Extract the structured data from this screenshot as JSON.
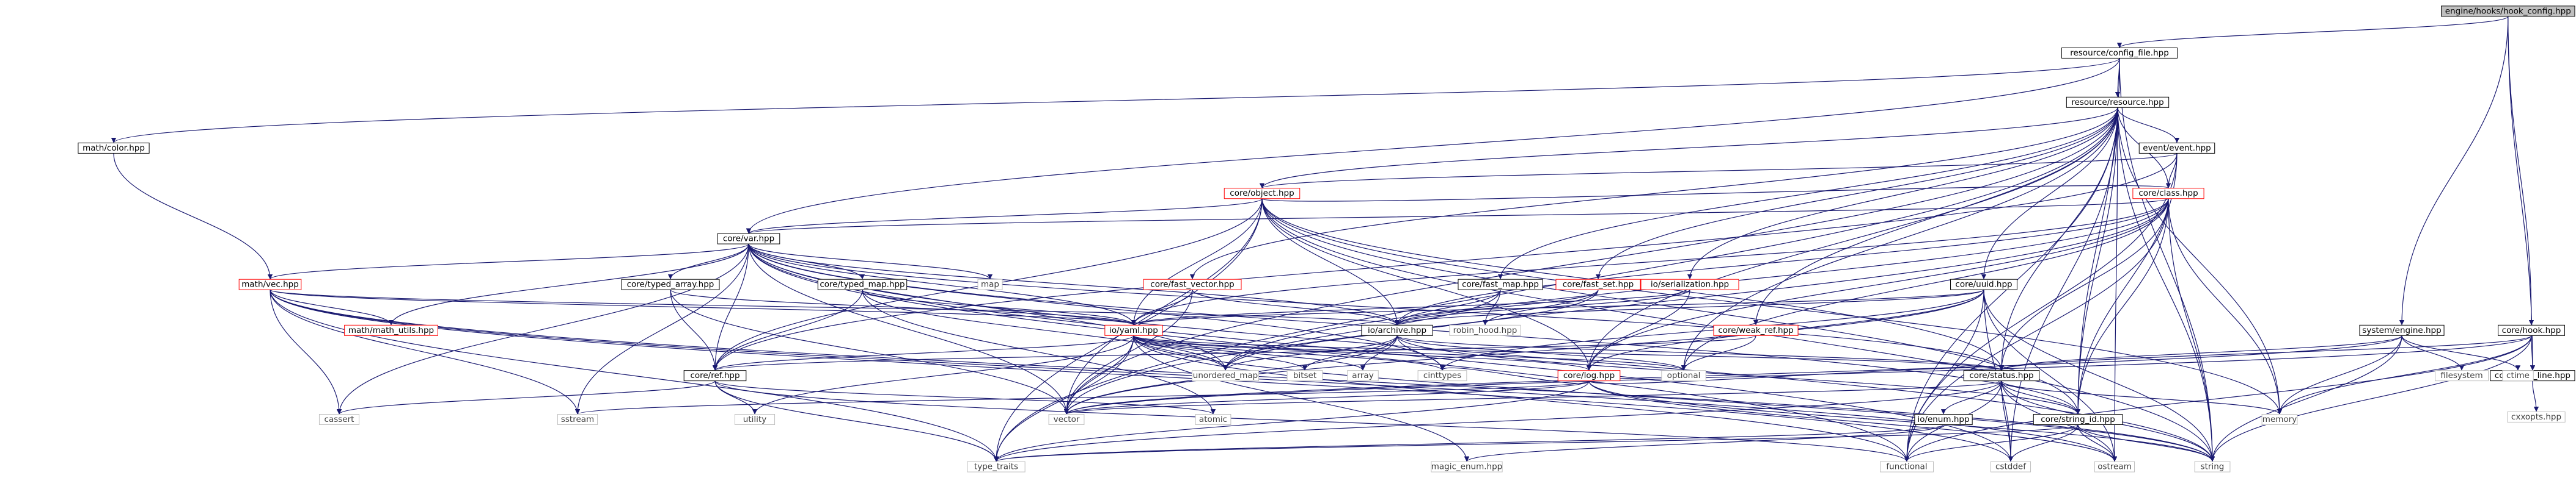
{
  "diagram": {
    "title": "",
    "colors": {
      "edge": "#191970",
      "root_fill": "#bfbfbf",
      "node_border": "#000000",
      "red_node_border": "#ff0000",
      "external_border": "#bfbfbf",
      "external_text": "#404040"
    },
    "nodes": [
      {
        "id": "hook_config",
        "label": "engine/hooks/hook_config.hpp",
        "kind": "root"
      },
      {
        "id": "config_file",
        "label": "resource/config_file.hpp",
        "kind": "doc"
      },
      {
        "id": "math_color",
        "label": "math/color.hpp",
        "kind": "doc"
      },
      {
        "id": "resource",
        "label": "resource/resource.hpp",
        "kind": "doc"
      },
      {
        "id": "event",
        "label": "event/event.hpp",
        "kind": "doc"
      },
      {
        "id": "object",
        "label": "core/object.hpp",
        "kind": "red"
      },
      {
        "id": "class",
        "label": "core/class.hpp",
        "kind": "red"
      },
      {
        "id": "var",
        "label": "core/var.hpp",
        "kind": "doc"
      },
      {
        "id": "math_vec",
        "label": "math/vec.hpp",
        "kind": "red"
      },
      {
        "id": "typed_array",
        "label": "core/typed_array.hpp",
        "kind": "doc"
      },
      {
        "id": "typed_map",
        "label": "core/typed_map.hpp",
        "kind": "doc"
      },
      {
        "id": "fast_vector",
        "label": "core/fast_vector.hpp",
        "kind": "red"
      },
      {
        "id": "fast_map",
        "label": "core/fast_map.hpp",
        "kind": "doc"
      },
      {
        "id": "fast_set",
        "label": "core/fast_set.hpp",
        "kind": "red"
      },
      {
        "id": "serialization",
        "label": "io/serialization.hpp",
        "kind": "red"
      },
      {
        "id": "uuid",
        "label": "core/uuid.hpp",
        "kind": "doc"
      },
      {
        "id": "weak_ref",
        "label": "core/weak_ref.hpp",
        "kind": "red"
      },
      {
        "id": "math_utils",
        "label": "math/math_utils.hpp",
        "kind": "red"
      },
      {
        "id": "yaml",
        "label": "io/yaml.hpp",
        "kind": "red"
      },
      {
        "id": "archive",
        "label": "io/archive.hpp",
        "kind": "doc"
      },
      {
        "id": "map",
        "label": "map",
        "kind": "ext"
      },
      {
        "id": "robin_hood",
        "label": "robin_hood.hpp",
        "kind": "ext"
      },
      {
        "id": "log",
        "label": "core/log.hpp",
        "kind": "red"
      },
      {
        "id": "ref",
        "label": "core/ref.hpp",
        "kind": "doc"
      },
      {
        "id": "status",
        "label": "core/status.hpp",
        "kind": "doc"
      },
      {
        "id": "system_engine",
        "label": "system/engine.hpp",
        "kind": "doc"
      },
      {
        "id": "hook",
        "label": "core/hook.hpp",
        "kind": "doc"
      },
      {
        "id": "cmd_line",
        "label": "core/cmd_line.hpp",
        "kind": "doc"
      },
      {
        "id": "cxxopts",
        "label": "cxxopts.hpp",
        "kind": "ext"
      },
      {
        "id": "unordered_map",
        "label": "unordered_map",
        "kind": "ext"
      },
      {
        "id": "bitset",
        "label": "bitset",
        "kind": "ext"
      },
      {
        "id": "array",
        "label": "array",
        "kind": "ext"
      },
      {
        "id": "cinttypes",
        "label": "cinttypes",
        "kind": "ext"
      },
      {
        "id": "optional",
        "label": "optional",
        "kind": "ext"
      },
      {
        "id": "filesystem",
        "label": "filesystem",
        "kind": "ext"
      },
      {
        "id": "ctime",
        "label": "ctime",
        "kind": "ext"
      },
      {
        "id": "cassert",
        "label": "cassert",
        "kind": "ext"
      },
      {
        "id": "sstream",
        "label": "sstream",
        "kind": "ext"
      },
      {
        "id": "utility",
        "label": "utility",
        "kind": "ext"
      },
      {
        "id": "vector",
        "label": "vector",
        "kind": "ext"
      },
      {
        "id": "atomic",
        "label": "atomic",
        "kind": "ext"
      },
      {
        "id": "enum",
        "label": "io/enum.hpp",
        "kind": "doc"
      },
      {
        "id": "string_id",
        "label": "core/string_id.hpp",
        "kind": "doc"
      },
      {
        "id": "memory",
        "label": "memory",
        "kind": "ext"
      },
      {
        "id": "type_traits",
        "label": "type_traits",
        "kind": "ext"
      },
      {
        "id": "magic_enum",
        "label": "magic_enum.hpp",
        "kind": "ext"
      },
      {
        "id": "functional",
        "label": "functional",
        "kind": "ext"
      },
      {
        "id": "cstddef",
        "label": "cstddef",
        "kind": "ext"
      },
      {
        "id": "ostream",
        "label": "ostream",
        "kind": "ext"
      },
      {
        "id": "string",
        "label": "string",
        "kind": "ext"
      }
    ],
    "edges": [
      [
        "hook_config",
        "config_file"
      ],
      [
        "hook_config",
        "system_engine"
      ],
      [
        "hook_config",
        "hook"
      ],
      [
        "hook_config",
        "cmd_line"
      ],
      [
        "config_file",
        "math_color"
      ],
      [
        "config_file",
        "resource"
      ],
      [
        "config_file",
        "var"
      ],
      [
        "config_file",
        "string_id"
      ],
      [
        "config_file",
        "string"
      ],
      [
        "math_color",
        "math_vec"
      ],
      [
        "resource",
        "event"
      ],
      [
        "resource",
        "object"
      ],
      [
        "resource",
        "class"
      ],
      [
        "resource",
        "fast_vector"
      ],
      [
        "resource",
        "fast_map"
      ],
      [
        "resource",
        "fast_set"
      ],
      [
        "resource",
        "serialization"
      ],
      [
        "resource",
        "uuid"
      ],
      [
        "resource",
        "weak_ref"
      ],
      [
        "resource",
        "log"
      ],
      [
        "resource",
        "status"
      ],
      [
        "resource",
        "string_id"
      ],
      [
        "resource",
        "type_traits"
      ],
      [
        "resource",
        "memory"
      ],
      [
        "resource",
        "functional"
      ],
      [
        "resource",
        "string"
      ],
      [
        "resource",
        "vector"
      ],
      [
        "resource",
        "optional"
      ],
      [
        "resource",
        "cstddef"
      ],
      [
        "resource",
        "ostream"
      ],
      [
        "event",
        "object"
      ],
      [
        "event",
        "class"
      ],
      [
        "event",
        "ref"
      ],
      [
        "event",
        "string_id"
      ],
      [
        "event",
        "functional"
      ],
      [
        "object",
        "var"
      ],
      [
        "object",
        "class"
      ],
      [
        "object",
        "ref"
      ],
      [
        "object",
        "yaml"
      ],
      [
        "object",
        "archive"
      ],
      [
        "object",
        "log"
      ],
      [
        "object",
        "status"
      ],
      [
        "object",
        "string_id"
      ],
      [
        "object",
        "type_traits"
      ],
      [
        "object",
        "string"
      ],
      [
        "object",
        "vector"
      ],
      [
        "object",
        "memory"
      ],
      [
        "class",
        "var"
      ],
      [
        "class",
        "status"
      ],
      [
        "class",
        "string_id"
      ],
      [
        "class",
        "functional"
      ],
      [
        "class",
        "string"
      ],
      [
        "class",
        "unordered_map"
      ],
      [
        "class",
        "vector"
      ],
      [
        "class",
        "memory"
      ],
      [
        "class",
        "archive"
      ],
      [
        "class",
        "yaml"
      ],
      [
        "class",
        "log"
      ],
      [
        "class",
        "optional"
      ],
      [
        "var",
        "math_vec"
      ],
      [
        "var",
        "typed_array"
      ],
      [
        "var",
        "typed_map"
      ],
      [
        "var",
        "math_utils"
      ],
      [
        "var",
        "ref"
      ],
      [
        "var",
        "yaml"
      ],
      [
        "var",
        "archive"
      ],
      [
        "var",
        "map"
      ],
      [
        "var",
        "unordered_map"
      ],
      [
        "var",
        "vector"
      ],
      [
        "var",
        "string"
      ],
      [
        "var",
        "string_id"
      ],
      [
        "var",
        "cassert"
      ],
      [
        "var",
        "sstream"
      ],
      [
        "var",
        "cinttypes"
      ],
      [
        "var",
        "functional"
      ],
      [
        "var",
        "cstddef"
      ],
      [
        "var",
        "status"
      ],
      [
        "math_vec",
        "math_utils"
      ],
      [
        "math_vec",
        "yaml"
      ],
      [
        "math_vec",
        "archive"
      ],
      [
        "math_vec",
        "cassert"
      ],
      [
        "math_vec",
        "sstream"
      ],
      [
        "math_vec",
        "type_traits"
      ],
      [
        "math_vec",
        "cstddef"
      ],
      [
        "math_vec",
        "string"
      ],
      [
        "math_vec",
        "ostream"
      ],
      [
        "typed_array",
        "ref"
      ],
      [
        "typed_array",
        "yaml"
      ],
      [
        "typed_array",
        "vector"
      ],
      [
        "typed_map",
        "ref"
      ],
      [
        "typed_map",
        "yaml"
      ],
      [
        "typed_map",
        "unordered_map"
      ],
      [
        "typed_map",
        "atomic"
      ],
      [
        "fast_vector",
        "archive"
      ],
      [
        "fast_vector",
        "yaml"
      ],
      [
        "fast_vector",
        "vector"
      ],
      [
        "fast_map",
        "archive"
      ],
      [
        "fast_map",
        "robin_hood"
      ],
      [
        "fast_map",
        "unordered_map"
      ],
      [
        "fast_set",
        "archive"
      ],
      [
        "fast_set",
        "robin_hood"
      ],
      [
        "fast_set",
        "unordered_map"
      ],
      [
        "serialization",
        "archive"
      ],
      [
        "serialization",
        "yaml"
      ],
      [
        "serialization",
        "log"
      ],
      [
        "uuid",
        "archive"
      ],
      [
        "uuid",
        "yaml"
      ],
      [
        "uuid",
        "log"
      ],
      [
        "uuid",
        "cinttypes"
      ],
      [
        "uuid",
        "string"
      ],
      [
        "uuid",
        "functional"
      ],
      [
        "uuid",
        "cstddef"
      ],
      [
        "uuid",
        "ostream"
      ],
      [
        "uuid",
        "vector"
      ],
      [
        "weak_ref",
        "ref"
      ],
      [
        "weak_ref",
        "optional"
      ],
      [
        "yaml",
        "ref"
      ],
      [
        "yaml",
        "unordered_map"
      ],
      [
        "yaml",
        "bitset"
      ],
      [
        "yaml",
        "array"
      ],
      [
        "yaml",
        "cinttypes"
      ],
      [
        "yaml",
        "optional"
      ],
      [
        "yaml",
        "vector"
      ],
      [
        "yaml",
        "type_traits"
      ],
      [
        "yaml",
        "magic_enum"
      ],
      [
        "yaml",
        "string"
      ],
      [
        "yaml",
        "utility"
      ],
      [
        "yaml",
        "functional"
      ],
      [
        "yaml",
        "status"
      ],
      [
        "yaml",
        "log"
      ],
      [
        "archive",
        "unordered_map"
      ],
      [
        "archive",
        "bitset"
      ],
      [
        "archive",
        "array"
      ],
      [
        "archive",
        "cinttypes"
      ],
      [
        "archive",
        "optional"
      ],
      [
        "archive",
        "vector"
      ],
      [
        "archive",
        "string_id"
      ],
      [
        "archive",
        "status"
      ],
      [
        "log",
        "status"
      ],
      [
        "log",
        "vector"
      ],
      [
        "log",
        "string"
      ],
      [
        "log",
        "sstream"
      ],
      [
        "log",
        "cinttypes"
      ],
      [
        "log",
        "type_traits"
      ],
      [
        "log",
        "ostream"
      ],
      [
        "ref",
        "cassert"
      ],
      [
        "ref",
        "atomic"
      ],
      [
        "ref",
        "utility"
      ],
      [
        "ref",
        "type_traits"
      ],
      [
        "ref",
        "functional"
      ],
      [
        "status",
        "string_id"
      ],
      [
        "status",
        "enum"
      ],
      [
        "status",
        "string"
      ],
      [
        "status",
        "memory"
      ],
      [
        "status",
        "vector"
      ],
      [
        "status",
        "functional"
      ],
      [
        "status",
        "cstddef"
      ],
      [
        "status",
        "ostream"
      ],
      [
        "status",
        "type_traits"
      ],
      [
        "system_engine",
        "status"
      ],
      [
        "system_engine",
        "filesystem"
      ],
      [
        "system_engine",
        "ctime"
      ],
      [
        "system_engine",
        "memory"
      ],
      [
        "system_engine",
        "vector"
      ],
      [
        "system_engine",
        "string"
      ],
      [
        "hook",
        "status"
      ],
      [
        "hook",
        "cmd_line"
      ],
      [
        "hook",
        "vector"
      ],
      [
        "hook",
        "memory"
      ],
      [
        "hook",
        "functional"
      ],
      [
        "hook",
        "string"
      ],
      [
        "cmd_line",
        "cxxopts"
      ],
      [
        "enum",
        "magic_enum"
      ],
      [
        "enum",
        "type_traits"
      ],
      [
        "string_id",
        "functional"
      ],
      [
        "string_id",
        "cstddef"
      ],
      [
        "string_id",
        "ostream"
      ],
      [
        "string_id",
        "string"
      ],
      [
        "string_id",
        "type_traits"
      ]
    ]
  }
}
